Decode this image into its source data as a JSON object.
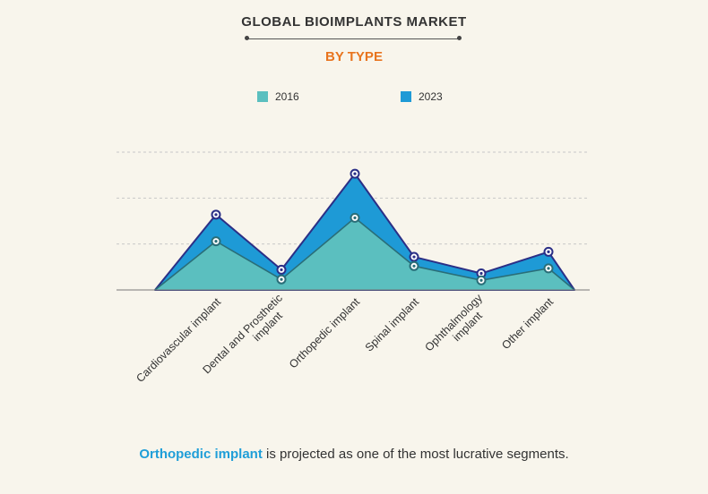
{
  "header": {
    "title": "GLOBAL BIOIMPLANTS MARKET",
    "subtitle": "BY TYPE"
  },
  "colors": {
    "series_2016": "#5bbfbf",
    "series_2023": "#1e9ad6",
    "outline": "#2b2f86",
    "grid": "#c8c8c8",
    "highlight": "#1f9ed8",
    "subtitle": "#e8741e"
  },
  "chart_data": {
    "type": "area",
    "title": "GLOBAL BIOIMPLANTS MARKET",
    "subtitle": "BY TYPE",
    "categories": [
      "Cardiovascular implant",
      "Dental and Prosthetic implant",
      "Orthopedic implant",
      "Spinal implant",
      "Ophthalmology implant",
      "Other implant"
    ],
    "series": [
      {
        "name": "2016",
        "values": [
          1.06,
          0.23,
          1.57,
          0.52,
          0.21,
          0.47
        ]
      },
      {
        "name": "2023",
        "values": [
          1.64,
          0.44,
          2.53,
          0.72,
          0.36,
          0.83
        ]
      }
    ],
    "ylim": [
      0,
      3
    ],
    "grid": true,
    "legend": "top",
    "xlabel": "",
    "ylabel": ""
  },
  "footer": {
    "highlight": "Orthopedic implant",
    "text": " is projected as one of the most lucrative segments."
  }
}
